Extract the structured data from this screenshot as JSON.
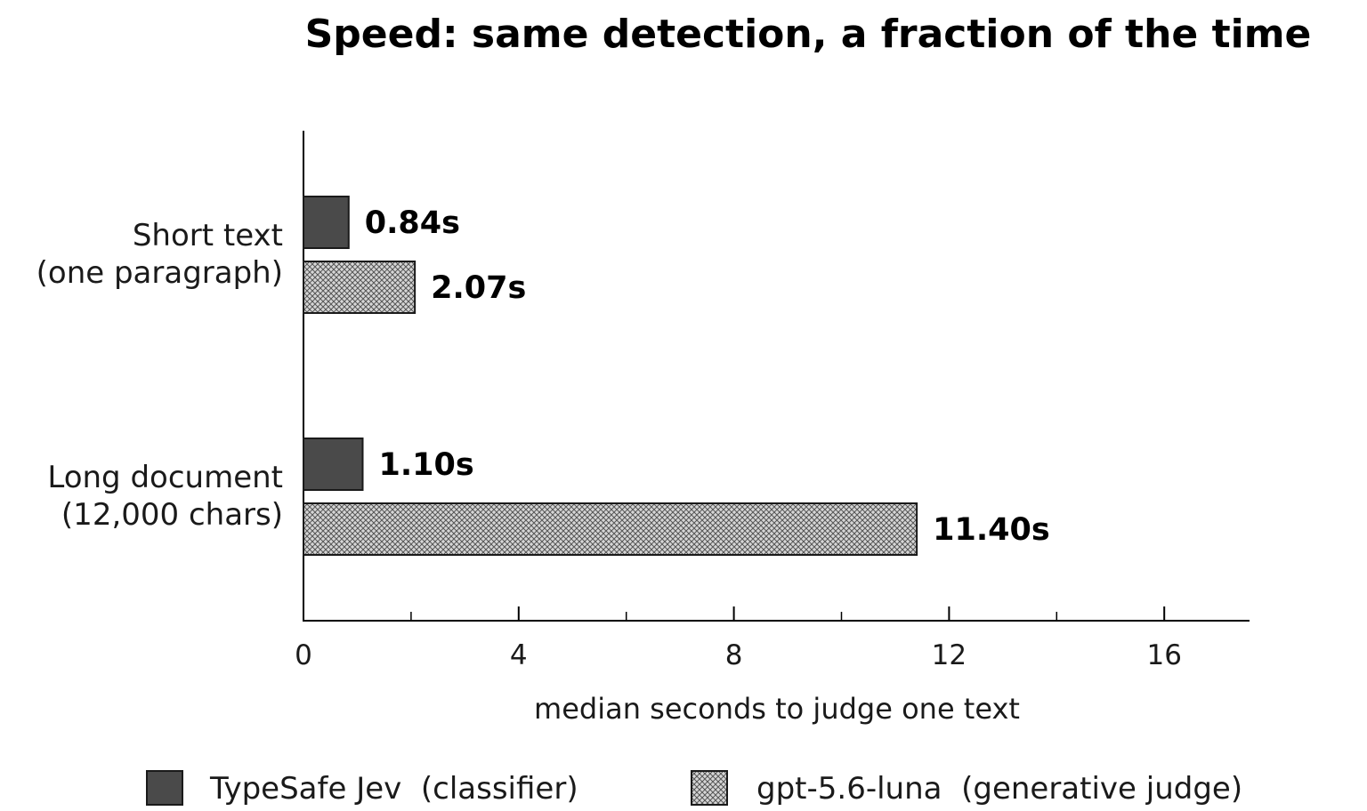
{
  "chart_data": {
    "type": "bar",
    "orientation": "horizontal",
    "title": "Speed: same detection, a fraction of the time",
    "xlabel": "median seconds to judge one text",
    "ylabel": "",
    "xlim": [
      0,
      17.6
    ],
    "x_ticks_major": [
      0,
      4,
      8,
      12,
      16
    ],
    "x_ticks_minor": [
      2,
      6,
      10,
      14
    ],
    "grid": false,
    "legend_position": "bottom",
    "categories": [
      [
        "Short text",
        "(one paragraph)"
      ],
      [
        "Long document",
        "(12,000 chars)"
      ]
    ],
    "series": [
      {
        "name": "TypeSafe Jev  (classifier)",
        "color": "#4a4a4a",
        "pattern": "solid",
        "values": [
          0.84,
          1.1
        ],
        "labels": [
          "0.84s",
          "1.10s"
        ]
      },
      {
        "name": "gpt-5.6-luna  (generative judge)",
        "color": "#8a8a8a",
        "pattern": "crosshatch",
        "values": [
          2.07,
          11.4
        ],
        "labels": [
          "2.07s",
          "11.40s"
        ]
      }
    ]
  }
}
